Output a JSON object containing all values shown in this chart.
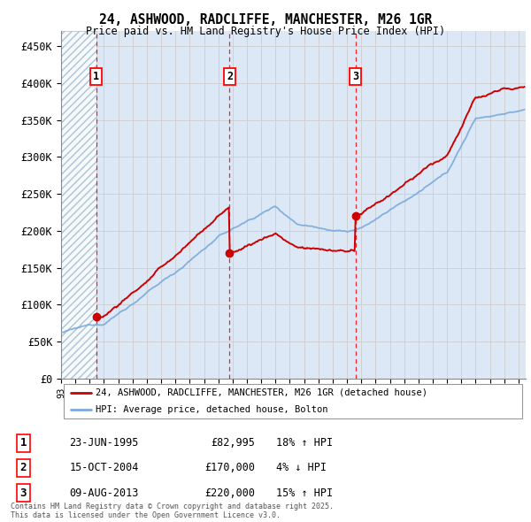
{
  "title_line1": "24, ASHWOOD, RADCLIFFE, MANCHESTER, M26 1GR",
  "title_line2": "Price paid vs. HM Land Registry's House Price Index (HPI)",
  "ylim": [
    0,
    470000
  ],
  "yticks": [
    0,
    50000,
    100000,
    150000,
    200000,
    250000,
    300000,
    350000,
    400000,
    450000
  ],
  "ytick_labels": [
    "£0",
    "£50K",
    "£100K",
    "£150K",
    "£200K",
    "£250K",
    "£300K",
    "£350K",
    "£400K",
    "£450K"
  ],
  "xlim_start": 1993.0,
  "xlim_end": 2025.5,
  "sale_dates": [
    1995.47,
    2004.79,
    2013.6
  ],
  "sale_prices": [
    82995,
    170000,
    220000
  ],
  "sale_labels": [
    "1",
    "2",
    "3"
  ],
  "hpi_color": "#7aaadd",
  "price_color": "#cc0000",
  "legend_entries": [
    "24, ASHWOOD, RADCLIFFE, MANCHESTER, M26 1GR (detached house)",
    "HPI: Average price, detached house, Bolton"
  ],
  "table_entries": [
    {
      "num": "1",
      "date": "23-JUN-1995",
      "price": "£82,995",
      "change": "18% ↑ HPI"
    },
    {
      "num": "2",
      "date": "15-OCT-2004",
      "price": "£170,000",
      "change": "4% ↓ HPI"
    },
    {
      "num": "3",
      "date": "09-AUG-2013",
      "price": "£220,000",
      "change": "15% ↑ HPI"
    }
  ],
  "footnote": "Contains HM Land Registry data © Crown copyright and database right 2025.\nThis data is licensed under the Open Government Licence v3.0.",
  "bg_hatch_end": 1995.47,
  "grid_color": "#cccccc",
  "plot_bg": "#dce8f5"
}
